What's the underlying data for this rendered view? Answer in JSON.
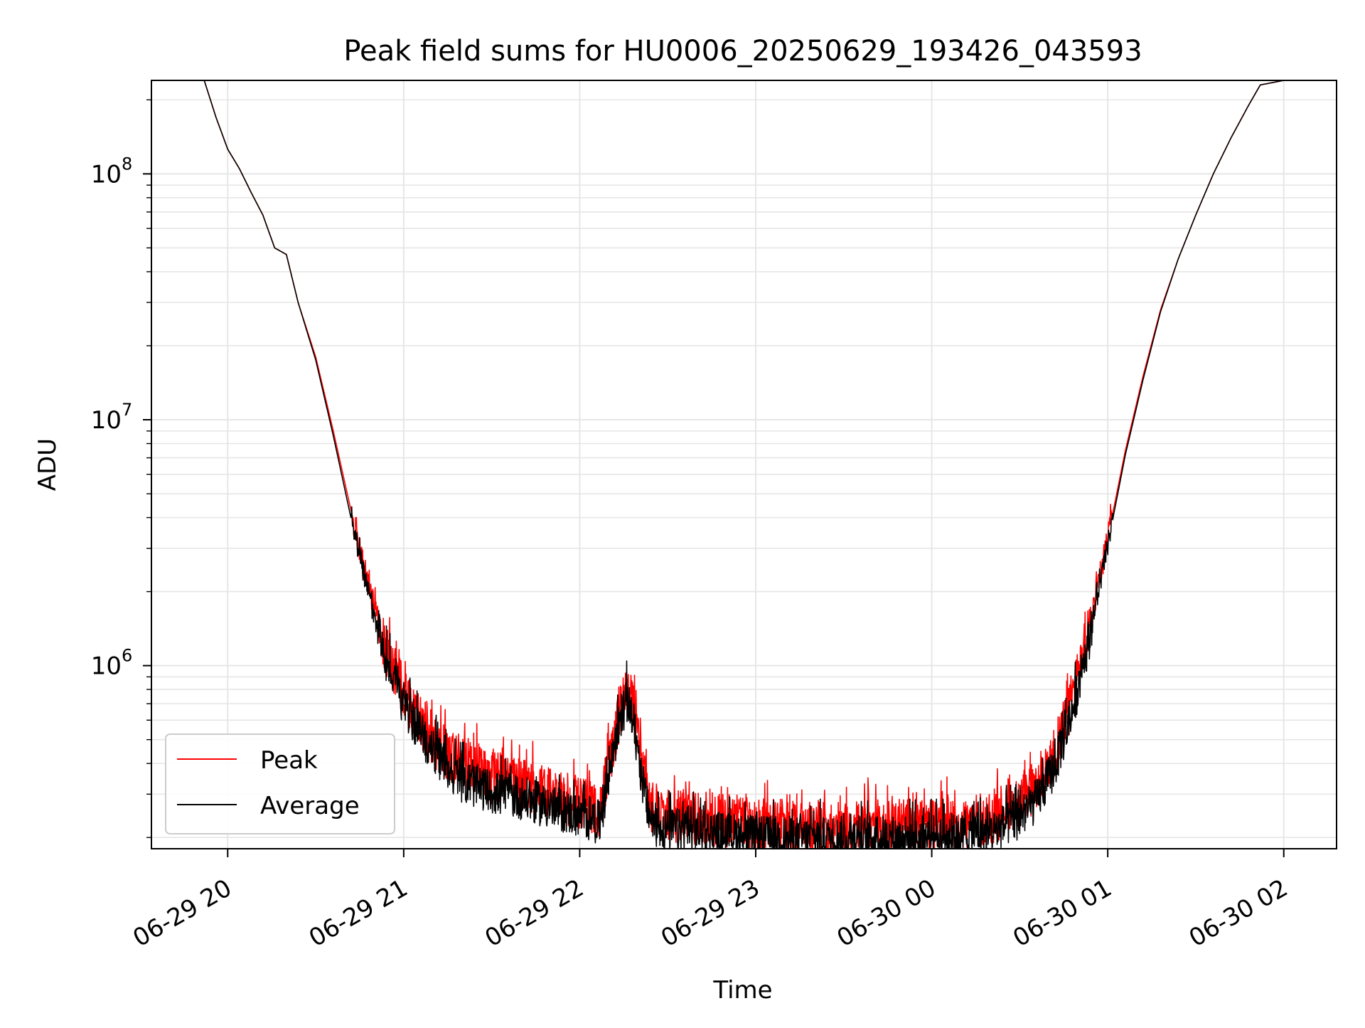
{
  "chart_data": {
    "type": "line",
    "title": "Peak field sums for HU0006_20250629_193426_043593",
    "xlabel": "Time",
    "ylabel": "ADU",
    "yscale": "log",
    "xlim": [
      "2025-06-29 19:34",
      "2025-06-30 02:18"
    ],
    "ylim": [
      180000,
      240000000
    ],
    "xticks": [
      {
        "value": "2025-06-29 20:00",
        "label": "06-29 20"
      },
      {
        "value": "2025-06-29 21:00",
        "label": "06-29 21"
      },
      {
        "value": "2025-06-29 22:00",
        "label": "06-29 22"
      },
      {
        "value": "2025-06-29 23:00",
        "label": "06-29 23"
      },
      {
        "value": "2025-06-30 00:00",
        "label": "06-30 00"
      },
      {
        "value": "2025-06-30 01:00",
        "label": "06-30 01"
      },
      {
        "value": "2025-06-30 02:00",
        "label": "06-30 02"
      }
    ],
    "yticks": [
      {
        "value": 1000000,
        "label": "10",
        "exp": "6"
      },
      {
        "value": 10000000,
        "label": "10",
        "exp": "7"
      },
      {
        "value": 100000000,
        "label": "10",
        "exp": "8"
      }
    ],
    "grid": true,
    "legend_position": "lower-left",
    "series": [
      {
        "name": "Peak",
        "color": "#ff0000",
        "noise": 0.11,
        "points": [
          [
            "2025-06-29 19:52",
            240000000
          ],
          [
            "2025-06-29 19:56",
            170000000
          ],
          [
            "2025-06-29 20:00",
            126000000
          ],
          [
            "2025-06-29 20:04",
            105000000
          ],
          [
            "2025-06-29 20:08",
            84000000
          ],
          [
            "2025-06-29 20:12",
            68000000
          ],
          [
            "2025-06-29 20:16",
            50000000
          ],
          [
            "2025-06-29 20:20",
            47000000
          ],
          [
            "2025-06-29 20:24",
            30000000
          ],
          [
            "2025-06-29 20:30",
            18000000
          ],
          [
            "2025-06-29 20:36",
            9000000
          ],
          [
            "2025-06-29 20:42",
            4300000
          ],
          [
            "2025-06-29 20:48",
            2100000
          ],
          [
            "2025-06-29 20:54",
            1150000
          ],
          [
            "2025-06-29 21:00",
            770000
          ],
          [
            "2025-06-29 21:06",
            580000
          ],
          [
            "2025-06-29 21:12",
            470000
          ],
          [
            "2025-06-29 21:20",
            390000
          ],
          [
            "2025-06-29 21:30",
            350000
          ],
          [
            "2025-06-29 21:40",
            330000
          ],
          [
            "2025-06-29 21:50",
            300000
          ],
          [
            "2025-06-29 22:00",
            275000
          ],
          [
            "2025-06-29 22:07",
            255000
          ],
          [
            "2025-06-29 22:10",
            400000
          ],
          [
            "2025-06-29 22:14",
            680000
          ],
          [
            "2025-06-29 22:16",
            780000
          ],
          [
            "2025-06-29 22:18",
            680000
          ],
          [
            "2025-06-29 22:21",
            400000
          ],
          [
            "2025-06-29 22:24",
            265000
          ],
          [
            "2025-06-29 22:30",
            245000
          ],
          [
            "2025-06-29 22:40",
            240000
          ],
          [
            "2025-06-29 22:50",
            235000
          ],
          [
            "2025-06-29 23:00",
            225000
          ],
          [
            "2025-06-29 23:20",
            220000
          ],
          [
            "2025-06-29 23:40",
            222000
          ],
          [
            "2025-06-30 00:00",
            222000
          ],
          [
            "2025-06-30 00:10",
            225000
          ],
          [
            "2025-06-30 00:20",
            240000
          ],
          [
            "2025-06-30 00:30",
            280000
          ],
          [
            "2025-06-30 00:36",
            330000
          ],
          [
            "2025-06-30 00:42",
            450000
          ],
          [
            "2025-06-30 00:48",
            750000
          ],
          [
            "2025-06-30 00:54",
            1500000
          ],
          [
            "2025-06-30 01:00",
            3300000
          ],
          [
            "2025-06-30 01:06",
            7500000
          ],
          [
            "2025-06-30 01:12",
            15000000
          ],
          [
            "2025-06-30 01:18",
            28000000
          ],
          [
            "2025-06-30 01:24",
            45000000
          ],
          [
            "2025-06-30 01:30",
            68000000
          ],
          [
            "2025-06-30 01:36",
            100000000
          ],
          [
            "2025-06-30 01:42",
            140000000
          ],
          [
            "2025-06-30 01:48",
            190000000
          ],
          [
            "2025-06-30 01:52",
            230000000
          ],
          [
            "2025-06-30 02:00",
            240000000
          ]
        ]
      },
      {
        "name": "Average",
        "color": "#000000",
        "noise": 0.09,
        "points": [
          [
            "2025-06-29 19:52",
            240000000
          ],
          [
            "2025-06-29 19:56",
            170000000
          ],
          [
            "2025-06-29 20:00",
            126000000
          ],
          [
            "2025-06-29 20:04",
            105000000
          ],
          [
            "2025-06-29 20:08",
            84000000
          ],
          [
            "2025-06-29 20:12",
            68000000
          ],
          [
            "2025-06-29 20:16",
            50000000
          ],
          [
            "2025-06-29 20:20",
            47000000
          ],
          [
            "2025-06-29 20:24",
            30000000
          ],
          [
            "2025-06-29 20:30",
            17500000
          ],
          [
            "2025-06-29 20:36",
            8600000
          ],
          [
            "2025-06-29 20:42",
            4000000
          ],
          [
            "2025-06-29 20:48",
            1950000
          ],
          [
            "2025-06-29 20:54",
            1050000
          ],
          [
            "2025-06-29 21:00",
            700000
          ],
          [
            "2025-06-29 21:06",
            520000
          ],
          [
            "2025-06-29 21:12",
            420000
          ],
          [
            "2025-06-29 21:20",
            340000
          ],
          [
            "2025-06-29 21:30",
            305000
          ],
          [
            "2025-06-29 21:40",
            290000
          ],
          [
            "2025-06-29 21:50",
            265000
          ],
          [
            "2025-06-29 22:00",
            245000
          ],
          [
            "2025-06-29 22:07",
            230000
          ],
          [
            "2025-06-29 22:10",
            360000
          ],
          [
            "2025-06-29 22:14",
            620000
          ],
          [
            "2025-06-29 22:16",
            720000
          ],
          [
            "2025-06-29 22:18",
            620000
          ],
          [
            "2025-06-29 22:21",
            360000
          ],
          [
            "2025-06-29 22:24",
            230000
          ],
          [
            "2025-06-29 22:30",
            215000
          ],
          [
            "2025-06-29 22:40",
            212000
          ],
          [
            "2025-06-29 22:50",
            207000
          ],
          [
            "2025-06-29 23:00",
            200000
          ],
          [
            "2025-06-29 23:20",
            198000
          ],
          [
            "2025-06-29 23:40",
            200000
          ],
          [
            "2025-06-30 00:00",
            200000
          ],
          [
            "2025-06-30 00:10",
            203000
          ],
          [
            "2025-06-30 00:20",
            210000
          ],
          [
            "2025-06-30 00:30",
            240000
          ],
          [
            "2025-06-30 00:36",
            285000
          ],
          [
            "2025-06-30 00:42",
            390000
          ],
          [
            "2025-06-30 00:48",
            650000
          ],
          [
            "2025-06-30 00:54",
            1350000
          ],
          [
            "2025-06-30 01:00",
            3100000
          ],
          [
            "2025-06-30 01:06",
            7200000
          ],
          [
            "2025-06-30 01:12",
            14500000
          ],
          [
            "2025-06-30 01:18",
            27500000
          ],
          [
            "2025-06-30 01:24",
            45000000
          ],
          [
            "2025-06-30 01:30",
            68000000
          ],
          [
            "2025-06-30 01:36",
            100000000
          ],
          [
            "2025-06-30 01:42",
            140000000
          ],
          [
            "2025-06-30 01:48",
            190000000
          ],
          [
            "2025-06-30 01:52",
            230000000
          ],
          [
            "2025-06-30 02:00",
            240000000
          ]
        ]
      }
    ]
  }
}
